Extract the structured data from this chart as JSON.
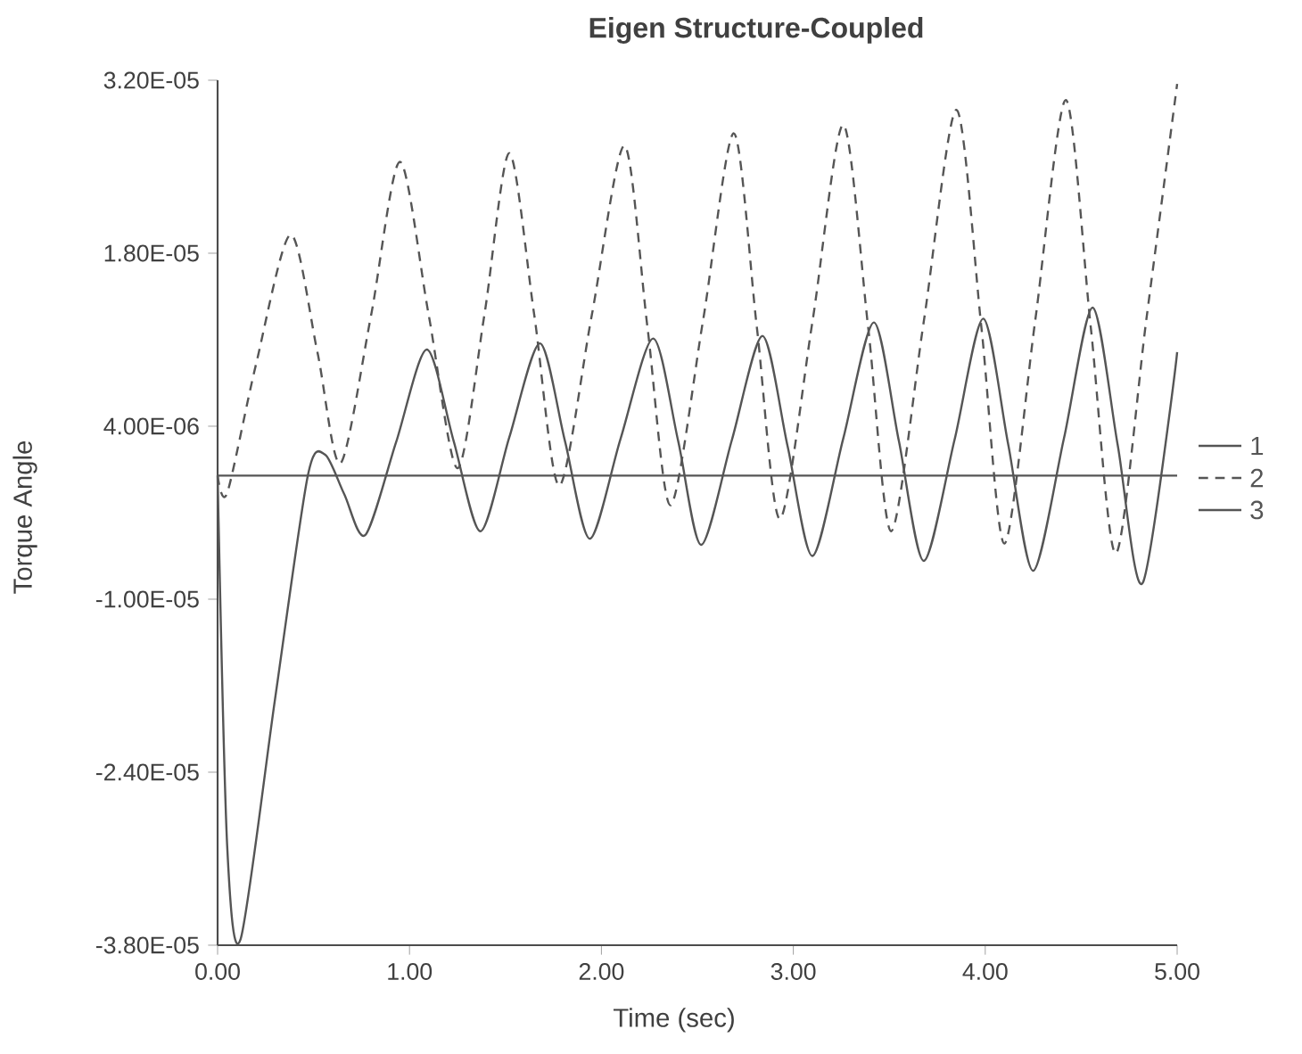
{
  "chart_data": {
    "type": "line",
    "title": "Eigen Structure-Coupled",
    "xlabel": "Time (sec)",
    "ylabel": "Torque Angle",
    "xlim": [
      0,
      5
    ],
    "ylim": [
      -3.8e-05,
      3.2e-05
    ],
    "xticks": [
      {
        "value": 0,
        "label": "0.00"
      },
      {
        "value": 1,
        "label": "1.00"
      },
      {
        "value": 2,
        "label": "2.00"
      },
      {
        "value": 3,
        "label": "3.00"
      },
      {
        "value": 4,
        "label": "4.00"
      },
      {
        "value": 5,
        "label": "5.00"
      }
    ],
    "yticks": [
      {
        "value": -3.8e-05,
        "label": "-3.80E-05"
      },
      {
        "value": -2.4e-05,
        "label": "-2.40E-05"
      },
      {
        "value": -1e-05,
        "label": "-1.00E-05"
      },
      {
        "value": 4e-06,
        "label": "4.00E-06"
      },
      {
        "value": 1.8e-05,
        "label": "1.80E-05"
      },
      {
        "value": 3.2e-05,
        "label": "3.20E-05"
      }
    ],
    "legend": "right",
    "series": [
      {
        "name": "1",
        "color": "#555555",
        "line_style": "solid",
        "x": [
          0,
          0.05,
          0.12,
          0.3,
          0.47,
          0.56,
          0.66,
          0.77,
          0.93,
          1.09,
          1.23,
          1.37,
          1.52,
          1.68,
          1.81,
          1.94,
          2.1,
          2.27,
          2.4,
          2.52,
          2.68,
          2.84,
          2.97,
          3.1,
          3.26,
          3.42,
          3.55,
          3.68,
          3.84,
          3.99,
          4.12,
          4.25,
          4.41,
          4.56,
          4.69,
          4.82,
          5.0
        ],
        "values": [
          0,
          -3e-05,
          -3.75e-05,
          -1.8e-05,
          0,
          1.7e-06,
          -1.5e-06,
          -4.8e-06,
          2.7e-06,
          1.02e-05,
          2.8e-06,
          -4.5e-06,
          3.1e-06,
          1.07e-05,
          2.8e-06,
          -5.1e-06,
          3e-06,
          1.11e-05,
          2.8e-06,
          -5.6e-06,
          2.9e-06,
          1.13e-05,
          2.4e-06,
          -6.5e-06,
          3e-06,
          1.24e-05,
          2.8e-06,
          -6.9e-06,
          2.9e-06,
          1.27e-05,
          2.5e-06,
          -7.7e-06,
          3e-06,
          1.36e-05,
          2.5e-06,
          -8.7e-06,
          1e-05
        ]
      },
      {
        "name": "2",
        "color": "#555555",
        "line_style": "dashed",
        "x": [
          0,
          0.05,
          0.2,
          0.38,
          0.52,
          0.64,
          0.8,
          0.95,
          1.1,
          1.25,
          1.39,
          1.52,
          1.65,
          1.78,
          1.95,
          2.12,
          2.24,
          2.36,
          2.53,
          2.69,
          2.81,
          2.93,
          3.1,
          3.26,
          3.39,
          3.51,
          3.68,
          3.85,
          3.98,
          4.1,
          4.26,
          4.42,
          4.55,
          4.68,
          4.84,
          5.0
        ],
        "values": [
          0,
          -1.4e-06,
          9e-06,
          1.95e-05,
          1e-05,
          1e-06,
          1.3e-05,
          2.54e-05,
          1.3e-05,
          6e-07,
          1.3e-05,
          2.61e-05,
          1.3e-05,
          -8e-07,
          1.3e-05,
          2.67e-05,
          1.2e-05,
          -2.4e-06,
          1.26e-05,
          2.77e-05,
          1.2e-05,
          -3.5e-06,
          1.25e-05,
          2.84e-05,
          1.2e-05,
          -4.5e-06,
          1.25e-05,
          2.96e-05,
          1.2e-05,
          -5.5e-06,
          1.25e-05,
          3.04e-05,
          1.2e-05,
          -6.3e-06,
          1.27e-05,
          3.17e-05
        ]
      },
      {
        "name": "3",
        "color": "#555555",
        "line_style": "solid",
        "x": [
          0,
          5
        ],
        "values": [
          0,
          0
        ]
      }
    ]
  }
}
